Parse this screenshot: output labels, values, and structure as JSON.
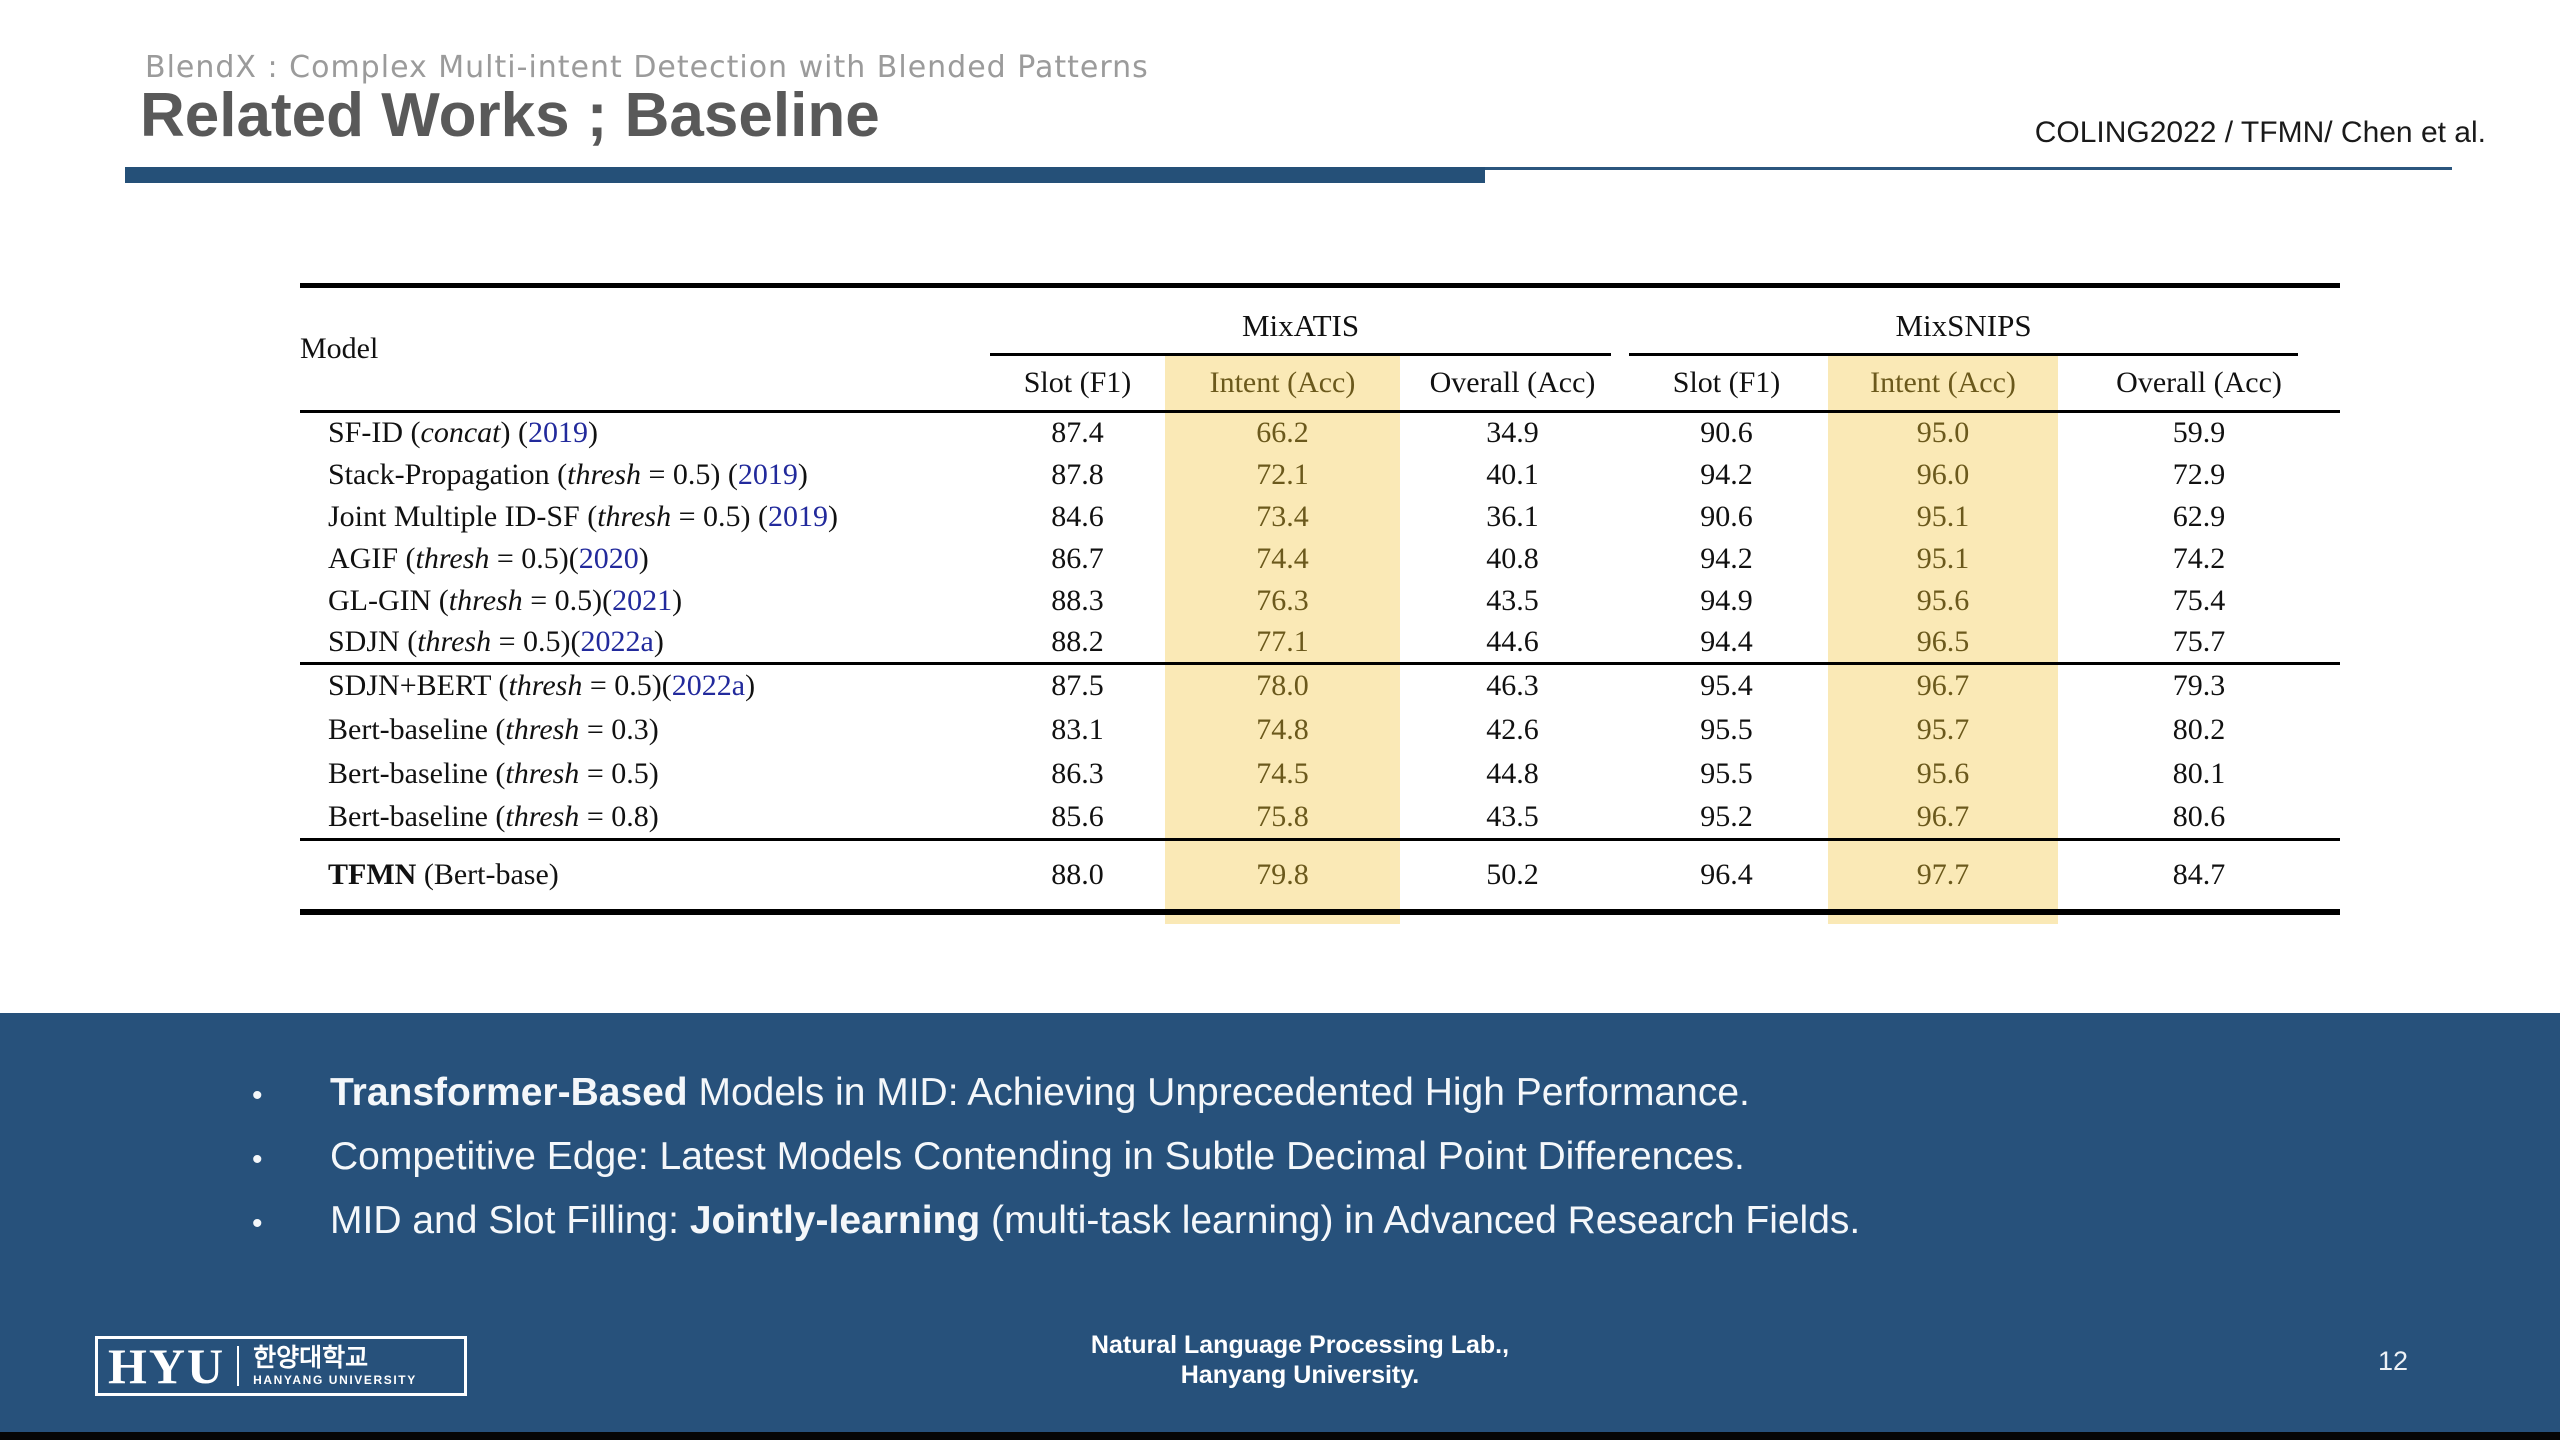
{
  "colors": {
    "accent_blue": "#27517b",
    "title_gray": "#595959",
    "kicker_gray": "#9b9b9b",
    "highlight_yellow": "#fae9b6",
    "highlight_text": "#6b591c",
    "citation_blue": "#222a9c"
  },
  "header": {
    "kicker": "BlendX : Complex Multi-intent Detection with Blended Patterns",
    "title": "Related Works ; Baseline",
    "reference": "COLING2022 / TFMN/ Chen et al."
  },
  "table": {
    "model_header": "Model",
    "col_groups": [
      "MixATIS",
      "MixSNIPS"
    ],
    "sub_headers": [
      "Slot (F1)",
      "Intent (Acc)",
      "Overall (Acc)",
      "Slot (F1)",
      "Intent (Acc)",
      "Overall (Acc)"
    ],
    "highlight_columns": [
      1,
      4
    ],
    "groups": [
      {
        "rows": [
          {
            "model": [
              [
                "p",
                "SF-ID ("
              ],
              [
                "i",
                "concat"
              ],
              [
                "p",
                ") ("
              ],
              [
                "y",
                "2019"
              ],
              [
                "p",
                ")"
              ]
            ],
            "values": [
              {
                "v": "87.4"
              },
              {
                "v": "66.2"
              },
              {
                "v": "34.9"
              },
              {
                "v": "90.6"
              },
              {
                "v": "95.0"
              },
              {
                "v": "59.9"
              }
            ]
          },
          {
            "model": [
              [
                "p",
                "Stack-Propagation ("
              ],
              [
                "i",
                "thresh"
              ],
              [
                "p",
                " = 0.5) ("
              ],
              [
                "y",
                "2019"
              ],
              [
                "p",
                ")"
              ]
            ],
            "values": [
              {
                "v": "87.8"
              },
              {
                "v": "72.1"
              },
              {
                "v": "40.1"
              },
              {
                "v": "94.2"
              },
              {
                "v": "96.0"
              },
              {
                "v": "72.9"
              }
            ]
          },
          {
            "model": [
              [
                "p",
                "Joint Multiple ID-SF ("
              ],
              [
                "i",
                "thresh"
              ],
              [
                "p",
                " = 0.5) ("
              ],
              [
                "y",
                "2019"
              ],
              [
                "p",
                ")"
              ]
            ],
            "values": [
              {
                "v": "84.6"
              },
              {
                "v": "73.4"
              },
              {
                "v": "36.1"
              },
              {
                "v": "90.6"
              },
              {
                "v": "95.1"
              },
              {
                "v": "62.9"
              }
            ]
          },
          {
            "model": [
              [
                "p",
                "AGIF ("
              ],
              [
                "i",
                "thresh"
              ],
              [
                "p",
                " = 0.5)("
              ],
              [
                "y",
                "2020"
              ],
              [
                "p",
                ")"
              ]
            ],
            "values": [
              {
                "v": "86.7"
              },
              {
                "v": "74.4"
              },
              {
                "v": "40.8"
              },
              {
                "v": "94.2"
              },
              {
                "v": "95.1"
              },
              {
                "v": "74.2"
              }
            ]
          },
          {
            "model": [
              [
                "p",
                "GL-GIN ("
              ],
              [
                "i",
                "thresh"
              ],
              [
                "p",
                " = 0.5)("
              ],
              [
                "y",
                "2021"
              ],
              [
                "p",
                ")"
              ]
            ],
            "values": [
              {
                "v": "88.3",
                "bold": true
              },
              {
                "v": "76.3"
              },
              {
                "v": "43.5"
              },
              {
                "v": "94.9"
              },
              {
                "v": "95.6"
              },
              {
                "v": "75.4"
              }
            ]
          },
          {
            "model": [
              [
                "p",
                "SDJN ("
              ],
              [
                "i",
                "thresh"
              ],
              [
                "p",
                " = 0.5)("
              ],
              [
                "y",
                "2022a"
              ],
              [
                "p",
                ")"
              ]
            ],
            "values": [
              {
                "v": "88.2"
              },
              {
                "v": "77.1"
              },
              {
                "v": "44.6"
              },
              {
                "v": "94.4"
              },
              {
                "v": "96.5"
              },
              {
                "v": "75.7"
              }
            ]
          }
        ]
      },
      {
        "rows": [
          {
            "model": [
              [
                "p",
                "SDJN+BERT ("
              ],
              [
                "i",
                "thresh"
              ],
              [
                "p",
                " = 0.5)("
              ],
              [
                "y",
                "2022a"
              ],
              [
                "p",
                ")"
              ]
            ],
            "values": [
              {
                "v": "87.5"
              },
              {
                "v": "78.0"
              },
              {
                "v": "46.3"
              },
              {
                "v": "95.4"
              },
              {
                "v": "96.7"
              },
              {
                "v": "79.3"
              }
            ]
          },
          {
            "model": [
              [
                "p",
                "Bert-baseline ("
              ],
              [
                "i",
                "thresh"
              ],
              [
                "p",
                " = 0.3)"
              ]
            ],
            "values": [
              {
                "v": "83.1"
              },
              {
                "v": "74.8"
              },
              {
                "v": "42.6"
              },
              {
                "v": "95.5"
              },
              {
                "v": "95.7"
              },
              {
                "v": "80.2"
              }
            ]
          },
          {
            "model": [
              [
                "p",
                "Bert-baseline ("
              ],
              [
                "i",
                "thresh"
              ],
              [
                "p",
                " = 0.5)"
              ]
            ],
            "values": [
              {
                "v": "86.3"
              },
              {
                "v": "74.5"
              },
              {
                "v": "44.8"
              },
              {
                "v": "95.5"
              },
              {
                "v": "95.6"
              },
              {
                "v": "80.1"
              }
            ]
          },
          {
            "model": [
              [
                "p",
                "Bert-baseline ("
              ],
              [
                "i",
                "thresh"
              ],
              [
                "p",
                " = 0.8)"
              ]
            ],
            "values": [
              {
                "v": "85.6"
              },
              {
                "v": "75.8"
              },
              {
                "v": "43.5"
              },
              {
                "v": "95.2"
              },
              {
                "v": "96.7"
              },
              {
                "v": "80.6"
              }
            ]
          }
        ]
      },
      {
        "rows": [
          {
            "model": [
              [
                "b",
                "TFMN"
              ],
              [
                "p",
                " (Bert-base)"
              ]
            ],
            "values": [
              {
                "v": "88.0"
              },
              {
                "v": "79.8",
                "bold": true
              },
              {
                "v": "50.2",
                "bold": true
              },
              {
                "v": "96.4",
                "bold": true
              },
              {
                "v": "97.7",
                "bold": true
              },
              {
                "v": "84.7",
                "bold": true
              }
            ]
          }
        ]
      }
    ]
  },
  "bullets": [
    {
      "segments": [
        {
          "t": "Transformer-Based",
          "bold": true
        },
        {
          "t": " Models in MID: Achieving Unprecedented High Performance.",
          "bold": false
        }
      ]
    },
    {
      "segments": [
        {
          "t": "Competitive Edge: Latest Models Contending in Subtle Decimal Point Differences.",
          "bold": false
        }
      ]
    },
    {
      "segments": [
        {
          "t": "MID and Slot Filling: ",
          "bold": false
        },
        {
          "t": "Jointly-learning",
          "bold": true
        },
        {
          "t": " (multi-task learning) in Advanced Research Fields.",
          "bold": false
        }
      ]
    }
  ],
  "footer": {
    "logo": {
      "acronym": "HYU",
      "korean": "한양대학교",
      "english": "HANYANG UNIVERSITY"
    },
    "lab_line1": "Natural Language Processing Lab.,",
    "lab_line2": "Hanyang University.",
    "page_number": "12"
  }
}
